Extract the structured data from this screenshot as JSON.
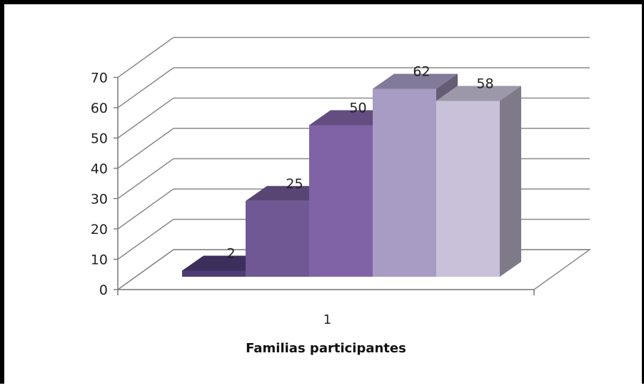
{
  "chart_data": {
    "type": "bar",
    "style": "3d-clustered-column",
    "categories": [
      "1"
    ],
    "series": [
      {
        "values": [
          2
        ],
        "color": "#4e3c76"
      },
      {
        "values": [
          25
        ],
        "color": "#6f5893"
      },
      {
        "values": [
          50
        ],
        "color": "#8063a6"
      },
      {
        "values": [
          62
        ],
        "color": "#a89bc4"
      },
      {
        "values": [
          58
        ],
        "color": "#c8c1d9"
      }
    ],
    "data_labels": [
      "2",
      "25",
      "50",
      "62",
      "58"
    ],
    "xlabel": "Familias participantes",
    "ylabel": "",
    "yticks": [
      0,
      10,
      20,
      30,
      40,
      50,
      60,
      70
    ],
    "ylim": [
      0,
      70
    ],
    "grid": true,
    "legend": "none"
  }
}
